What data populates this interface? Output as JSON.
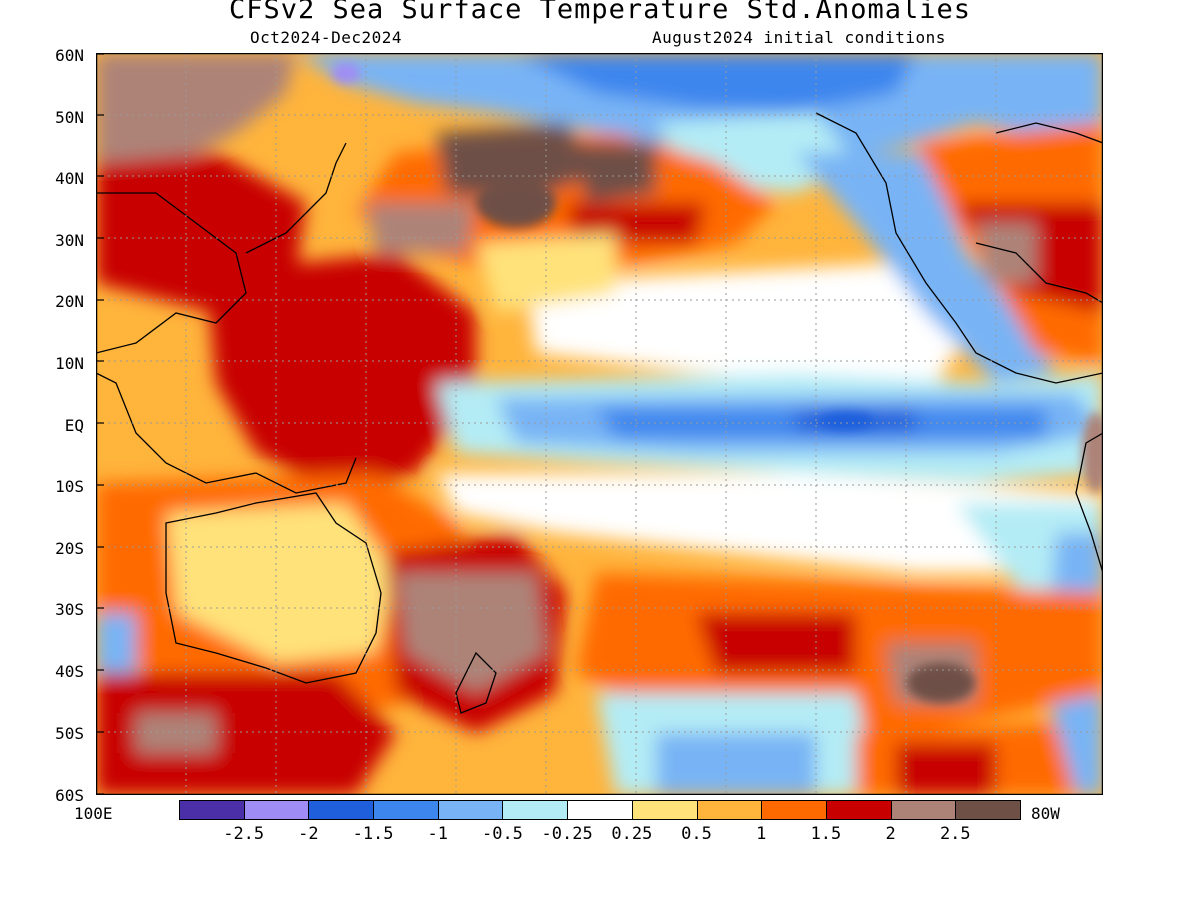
{
  "header": {
    "title": "CFSv2 Sea Surface Temperature Std.Anomalies",
    "period": "Oct2024-Dec2024",
    "initial_conditions": "August2024 initial conditions"
  },
  "axes": {
    "lat_labels": [
      "60N",
      "50N",
      "40N",
      "30N",
      "20N",
      "10N",
      "EQ",
      "10S",
      "20S",
      "30S",
      "40S",
      "50S",
      "60S"
    ],
    "lon_left": "100E",
    "lon_right": "80W"
  },
  "colorbar": {
    "colors": [
      "#4a2fa8",
      "#a08cf5",
      "#1f5fdc",
      "#3c86ee",
      "#78b4f5",
      "#b4ecf5",
      "#ffffff",
      "#ffe27a",
      "#ffb43c",
      "#ff6a00",
      "#c80000",
      "#ad8378",
      "#6e5046"
    ],
    "tick_labels": [
      "-2.5",
      "-2",
      "-1.5",
      "-1",
      "-0.5",
      "-0.25",
      "0.25",
      "0.5",
      "1",
      "1.5",
      "2",
      "2.5"
    ]
  }
}
